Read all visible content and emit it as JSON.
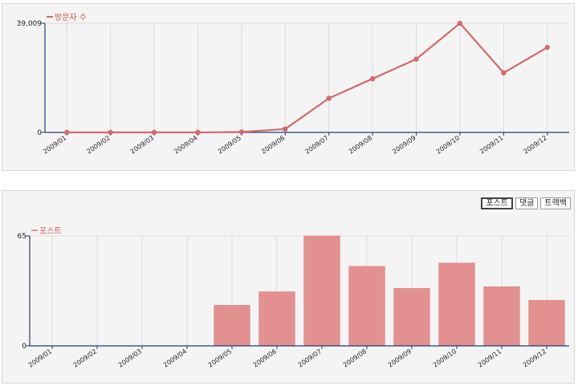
{
  "colors": {
    "line": "#d46a6a",
    "bar_fill": "#e39090",
    "bar_stroke": "#d98080",
    "axis": "#1f3f73",
    "grid": "#dcdcdc",
    "legend_text": "#d45050"
  },
  "chart_data": [
    {
      "type": "line",
      "legend": "방문자 수",
      "legend_placement": "top-left",
      "categories": [
        "2009/01",
        "2009/02",
        "2009/03",
        "2009/04",
        "2009/05",
        "2009/06",
        "2009/07",
        "2009/08",
        "2009/09",
        "2009/10",
        "2009/11",
        "2009/12"
      ],
      "values": [
        0,
        0,
        0,
        0,
        150,
        1200,
        12200,
        19200,
        26200,
        39009,
        21300,
        30400
      ],
      "ylim": [
        0,
        39009
      ],
      "y_ticks": [
        "0",
        "39,009"
      ],
      "grid": true
    },
    {
      "type": "bar",
      "legend": "포스트",
      "legend_placement": "top-left",
      "categories": [
        "2009/01",
        "2009/02",
        "2009/03",
        "2009/04",
        "2009/05",
        "2009/06",
        "2009/07",
        "2009/08",
        "2009/09",
        "2009/10",
        "2009/11",
        "2009/12"
      ],
      "values": [
        0,
        0,
        0,
        0,
        24,
        32,
        65,
        47,
        34,
        49,
        35,
        27
      ],
      "ylim": [
        0,
        65
      ],
      "y_ticks": [
        "0",
        "65"
      ],
      "grid": true
    }
  ],
  "tabs": [
    {
      "label": "포스트",
      "active": true
    },
    {
      "label": "댓글",
      "active": false
    },
    {
      "label": "트랙백",
      "active": false
    }
  ]
}
